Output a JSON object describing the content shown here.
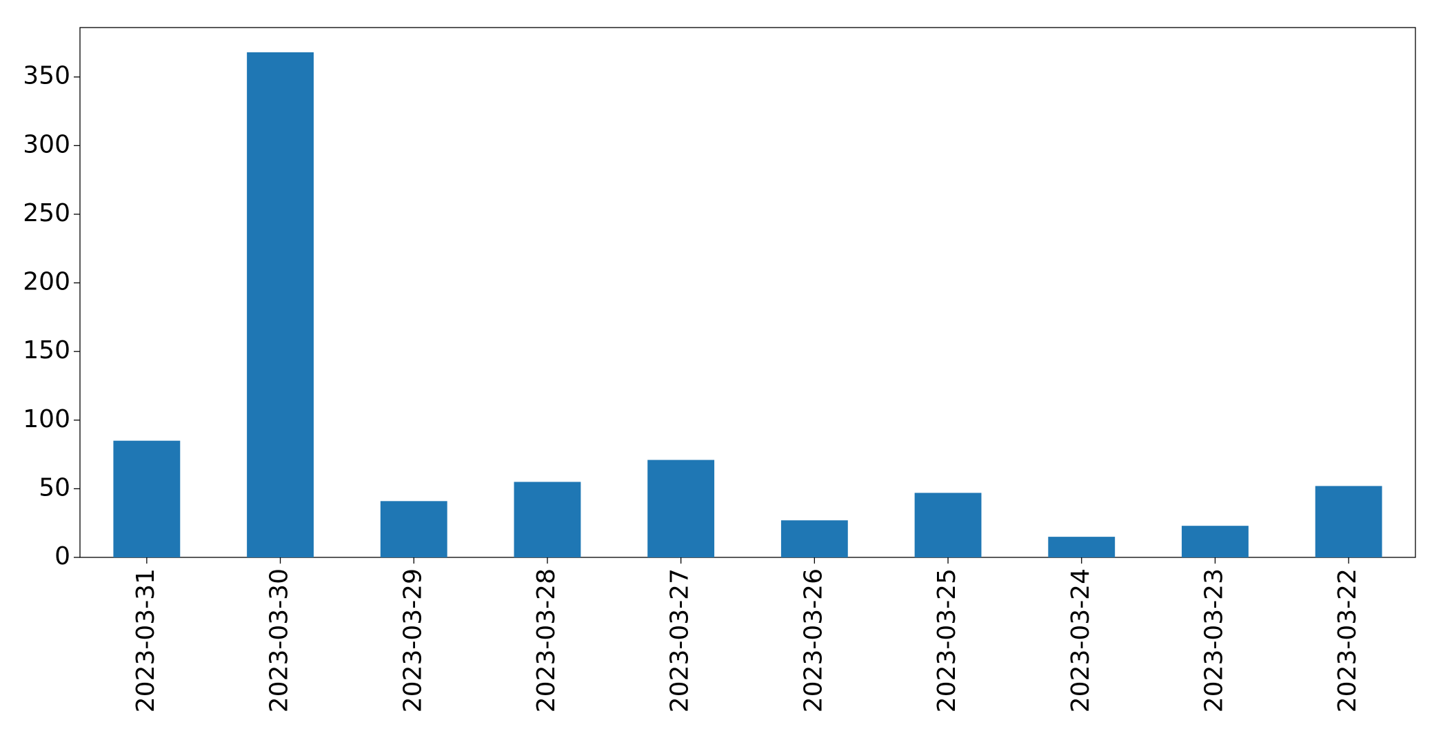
{
  "chart_data": {
    "type": "bar",
    "categories": [
      "2023-03-31",
      "2023-03-30",
      "2023-03-29",
      "2023-03-28",
      "2023-03-27",
      "2023-03-26",
      "2023-03-25",
      "2023-03-24",
      "2023-03-23",
      "2023-03-22"
    ],
    "values": [
      85,
      368,
      41,
      55,
      71,
      27,
      47,
      15,
      23,
      52
    ],
    "color": "#1f77b4",
    "ylim": [
      0,
      386
    ],
    "yticks": [
      0,
      50,
      100,
      150,
      200,
      250,
      300,
      350
    ],
    "grid": false
  }
}
